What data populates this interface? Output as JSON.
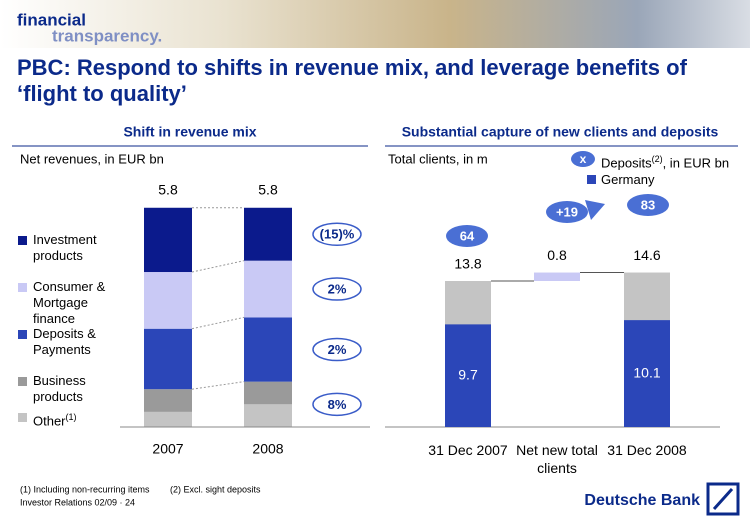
{
  "header": {
    "logo_line1": "financial",
    "logo_line2": "transparency.",
    "title_line1": "PBC: Respond to shifts in revenue mix, and leverage benefits of",
    "title_line2": "‘flight to quality’"
  },
  "chart_data": [
    {
      "type": "stacked-bar",
      "title": "Shift in revenue mix",
      "subtitle": "Net revenues, in EUR bn",
      "categories": [
        "2007",
        "2008"
      ],
      "series": [
        {
          "name": "Investment products",
          "color": "#0b1a8c",
          "values": [
            1.7,
            1.4
          ]
        },
        {
          "name": "Consumer & Mortgage finance",
          "color": "#c9c9f5",
          "values": [
            1.5,
            1.5
          ]
        },
        {
          "name": "Deposits & Payments",
          "color": "#2b46b8",
          "values": [
            1.6,
            1.7
          ]
        },
        {
          "name": "Business products",
          "color": "#9a9a9a",
          "values": [
            0.6,
            0.6
          ]
        },
        {
          "name": "Other",
          "name_note": "(1)",
          "color": "#c4c4c4",
          "values": [
            0.4,
            0.6
          ]
        }
      ],
      "totals": [
        5.8,
        5.8
      ],
      "change_labels": [
        "(15)%",
        "2%",
        "2%",
        "8%"
      ]
    },
    {
      "type": "waterfall",
      "title": "Substantial capture of new clients and deposits",
      "subtitle": "Total clients, in m",
      "categories": [
        "31 Dec 2007",
        "Net new total clients",
        "31 Dec 2008"
      ],
      "values": [
        13.8,
        0.8,
        14.6
      ],
      "colors": [
        "#c4c4c4",
        "#c9c9f5",
        "#c4c4c4"
      ],
      "series": [
        {
          "name": "Germany",
          "color": "#2b46b8",
          "values": [
            9.7,
            null,
            10.1
          ]
        },
        {
          "name": "Deposits",
          "name_note": "(2)",
          "name_suffix": ", in EUR bn",
          "marker_label": "x",
          "color": "#4a6fd4",
          "values": [
            64,
            19,
            83
          ],
          "value_labels": [
            "64",
            "+19",
            "83"
          ]
        }
      ]
    }
  ],
  "footer": {
    "note1": "(1) Including non-recurring items",
    "note2": "(2) Excl. sight deposits",
    "source": "Investor Relations 02/09 · 24",
    "brand": "Deutsche Bank"
  }
}
